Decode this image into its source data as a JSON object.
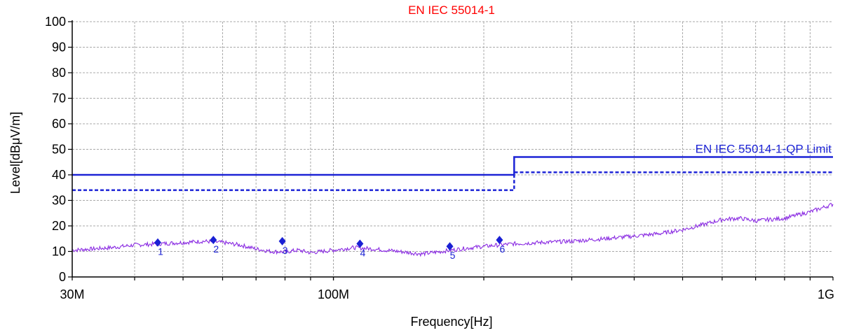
{
  "chart_data": {
    "type": "line",
    "title": "EN IEC 55014-1",
    "xlabel": "Frequency[Hz]",
    "ylabel": "Level[dBμV/m]",
    "x_scale": "log",
    "xlim": [
      30000000,
      1000000000
    ],
    "ylim": [
      0,
      100
    ],
    "grid": true,
    "x_ticks": [
      {
        "value": 30000000,
        "label": "30M"
      },
      {
        "value": 100000000,
        "label": "100M"
      },
      {
        "value": 1000000000,
        "label": "1G"
      }
    ],
    "y_ticks": [
      0,
      10,
      20,
      30,
      40,
      50,
      60,
      70,
      80,
      90,
      100
    ],
    "limit_label": "EN IEC 55014-1-QP Limit",
    "colors": {
      "title": "#ff0000",
      "limit": "#1c23d6",
      "trace": "#8a2be2",
      "marker": "#1a20d4",
      "grid": "#a9a9a9"
    },
    "series": [
      {
        "name": "EN IEC 55014-1-QP Limit",
        "style": "solid",
        "points": [
          [
            30000000,
            40
          ],
          [
            230000000,
            40
          ],
          [
            230000000,
            47
          ],
          [
            1000000000,
            47
          ]
        ]
      },
      {
        "name": "",
        "style": "dashed",
        "points": [
          [
            30000000,
            34
          ],
          [
            230000000,
            34
          ],
          [
            230000000,
            41
          ],
          [
            1000000000,
            41
          ]
        ]
      },
      {
        "name": "",
        "style": "trace",
        "points": [
          [
            30000000,
            10.5
          ],
          [
            33000000,
            11
          ],
          [
            36000000,
            11.5
          ],
          [
            40000000,
            12.5
          ],
          [
            45000000,
            13
          ],
          [
            50000000,
            13.5
          ],
          [
            55000000,
            14
          ],
          [
            60000000,
            13.5
          ],
          [
            65000000,
            12.5
          ],
          [
            70000000,
            11
          ],
          [
            75000000,
            10
          ],
          [
            80000000,
            9.8
          ],
          [
            85000000,
            10.5
          ],
          [
            90000000,
            9.5
          ],
          [
            100000000,
            10.5
          ],
          [
            110000000,
            11.5
          ],
          [
            120000000,
            11
          ],
          [
            135000000,
            10
          ],
          [
            150000000,
            9
          ],
          [
            165000000,
            10
          ],
          [
            180000000,
            11
          ],
          [
            200000000,
            12
          ],
          [
            230000000,
            13
          ],
          [
            260000000,
            13.5
          ],
          [
            300000000,
            14
          ],
          [
            350000000,
            15
          ],
          [
            400000000,
            16
          ],
          [
            450000000,
            17
          ],
          [
            500000000,
            18.5
          ],
          [
            550000000,
            20.5
          ],
          [
            600000000,
            22.5
          ],
          [
            650000000,
            23
          ],
          [
            700000000,
            22
          ],
          [
            800000000,
            23
          ],
          [
            900000000,
            25.5
          ],
          [
            1000000000,
            28.5
          ]
        ]
      }
    ],
    "markers": [
      {
        "label": "1",
        "x": 44500000,
        "y": 13.5
      },
      {
        "label": "2",
        "x": 57500000,
        "y": 14.5
      },
      {
        "label": "3",
        "x": 79000000,
        "y": 14
      },
      {
        "label": "4",
        "x": 113000000,
        "y": 13
      },
      {
        "label": "5",
        "x": 171000000,
        "y": 12
      },
      {
        "label": "6",
        "x": 215000000,
        "y": 14.5
      }
    ]
  }
}
